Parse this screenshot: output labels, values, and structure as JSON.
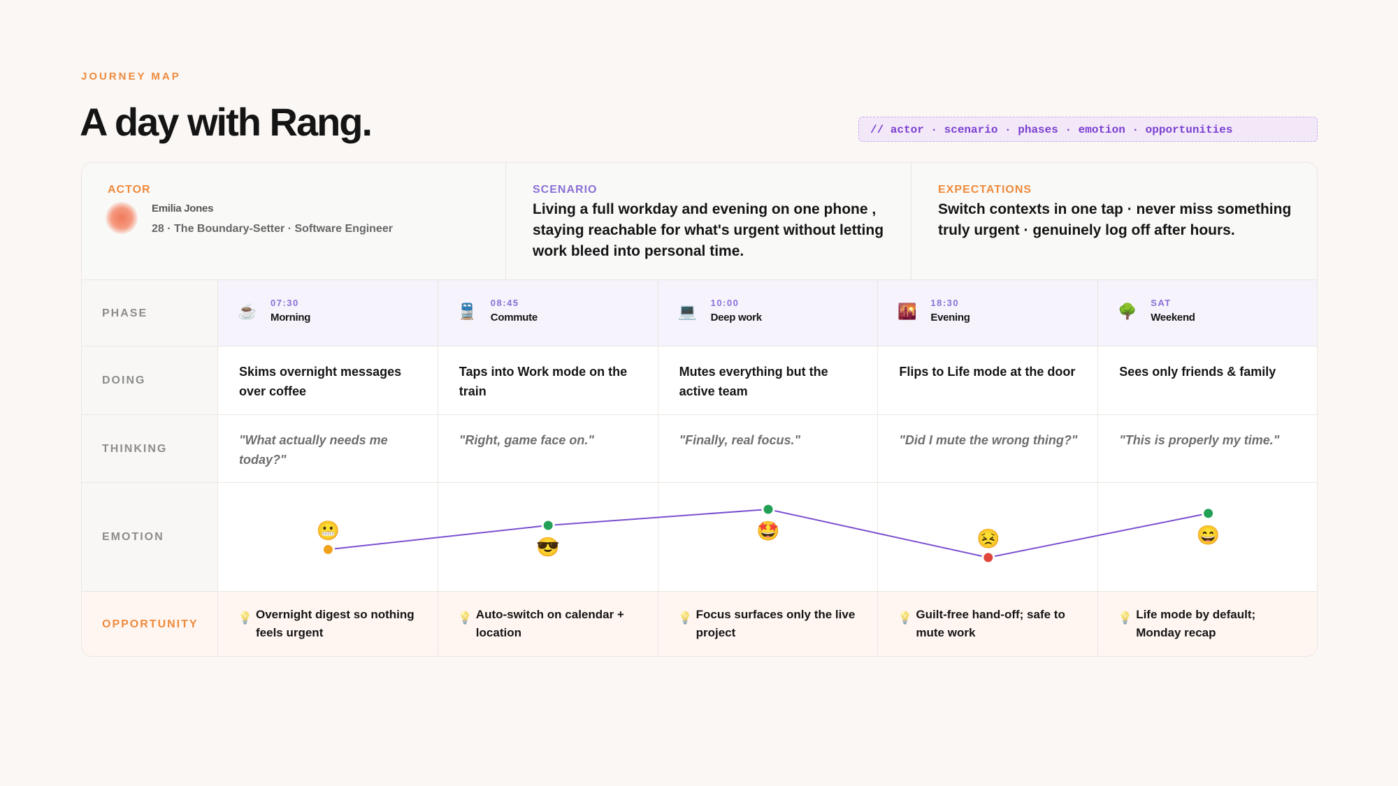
{
  "eyebrow": "JOURNEY MAP",
  "title": "A day with Rang.",
  "tag": "// actor · scenario · phases · emotion · opportunities",
  "actor": {
    "label": "ACTOR",
    "name": "Emilia Jones",
    "description": "28 · The Boundary-Setter · Software Engineer"
  },
  "scenario": {
    "label": "SCENARIO",
    "text": "Living a full workday and evening on one phone , staying reachable for what's urgent without letting work bleed into personal time."
  },
  "expectations": {
    "label": "EXPECTATIONS",
    "text": "Switch contexts in one tap · never miss something truly urgent · genuinely log off after hours."
  },
  "row_labels": {
    "phase": "PHASE",
    "doing": "DOING",
    "thinking": "THINKING",
    "emotion": "EMOTION",
    "opportunity": "OPPORTUNITY"
  },
  "opportunity_icon": "💡",
  "emotion_range": [
    0,
    10
  ],
  "emotion_line_color": "#7b4fd0",
  "phases": [
    {
      "icon": "☕",
      "time": "07:30",
      "name": "Morning",
      "doing": "Skims overnight messages over coffee",
      "thinking": "\"What actually needs me today?\"",
      "emotion": {
        "emoji": "😬",
        "value": 3,
        "color": "#f0a21e"
      },
      "opportunity": "Overnight digest so nothing feels urgent"
    },
    {
      "icon": "🚆",
      "time": "08:45",
      "name": "Commute",
      "doing": "Taps into Work mode on the train",
      "thinking": "\"Right, game face on.\"",
      "emotion": {
        "emoji": "😎",
        "value": 6,
        "color": "#22a055"
      },
      "opportunity": "Auto-switch on calendar + location"
    },
    {
      "icon": "💻",
      "time": "10:00",
      "name": "Deep work",
      "doing": "Mutes everything but the active team",
      "thinking": "\"Finally, real focus.\"",
      "emotion": {
        "emoji": "🤩",
        "value": 8,
        "color": "#22a055"
      },
      "opportunity": "Focus surfaces only the live project"
    },
    {
      "icon": "🌇",
      "time": "18:30",
      "name": "Evening",
      "doing": "Flips to Life mode at the door",
      "thinking": "\"Did I mute the wrong thing?\"",
      "emotion": {
        "emoji": "😣",
        "value": 2,
        "color": "#e0473a"
      },
      "opportunity": "Guilt-free hand-off; safe to mute work"
    },
    {
      "icon": "🌳",
      "time": "SAT",
      "name": "Weekend",
      "doing": "Sees only friends & family",
      "thinking": "\"This is properly my time.\"",
      "emotion": {
        "emoji": "😄",
        "value": 7.5,
        "color": "#22a055"
      },
      "opportunity": "Life mode by default; Monday recap"
    }
  ]
}
